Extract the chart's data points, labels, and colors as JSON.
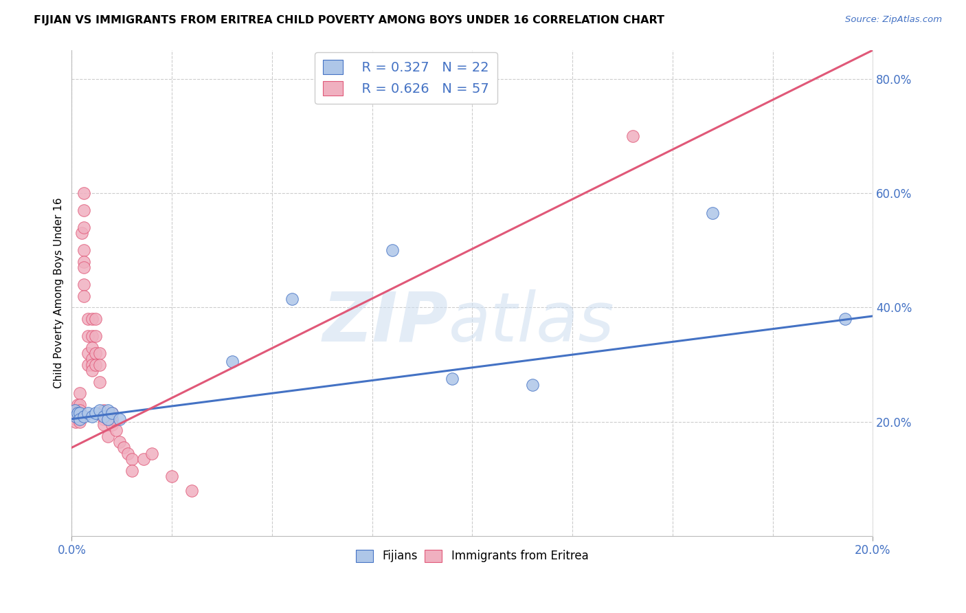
{
  "title": "FIJIAN VS IMMIGRANTS FROM ERITREA CHILD POVERTY AMONG BOYS UNDER 16 CORRELATION CHART",
  "source": "Source: ZipAtlas.com",
  "ylabel": "Child Poverty Among Boys Under 16",
  "xlim": [
    0.0,
    0.2
  ],
  "ylim": [
    0.0,
    0.85
  ],
  "yticks": [
    0.0,
    0.2,
    0.4,
    0.6,
    0.8
  ],
  "ytick_labels": [
    "",
    "20.0%",
    "40.0%",
    "60.0%",
    "80.0%"
  ],
  "xtick_vals": [
    0.0,
    0.2
  ],
  "xtick_labels": [
    "0.0%",
    "20.0%"
  ],
  "fijian_R": 0.327,
  "fijian_N": 22,
  "eritrea_R": 0.626,
  "eritrea_N": 57,
  "fijian_scatter_color": "#aec6e8",
  "eritrea_scatter_color": "#f0b0c0",
  "fijian_line_color": "#4472c4",
  "eritrea_line_color": "#e05878",
  "fijian_line_x0": 0.0,
  "fijian_line_y0": 0.205,
  "fijian_line_x1": 0.2,
  "fijian_line_y1": 0.385,
  "eritrea_line_x0": 0.0,
  "eritrea_line_y0": 0.155,
  "eritrea_line_x1": 0.2,
  "eritrea_line_y1": 0.85,
  "fijian_x": [
    0.0008,
    0.001,
    0.0015,
    0.002,
    0.002,
    0.003,
    0.004,
    0.005,
    0.006,
    0.007,
    0.008,
    0.009,
    0.009,
    0.01,
    0.012,
    0.04,
    0.055,
    0.08,
    0.095,
    0.115,
    0.16,
    0.193
  ],
  "fijian_y": [
    0.22,
    0.21,
    0.215,
    0.215,
    0.205,
    0.21,
    0.215,
    0.21,
    0.215,
    0.22,
    0.21,
    0.22,
    0.205,
    0.215,
    0.205,
    0.305,
    0.415,
    0.5,
    0.275,
    0.265,
    0.565,
    0.38
  ],
  "eritrea_x": [
    0.001,
    0.001,
    0.001,
    0.001,
    0.001,
    0.0015,
    0.0015,
    0.002,
    0.002,
    0.002,
    0.002,
    0.002,
    0.0025,
    0.003,
    0.003,
    0.003,
    0.003,
    0.003,
    0.003,
    0.003,
    0.003,
    0.004,
    0.004,
    0.004,
    0.004,
    0.005,
    0.005,
    0.005,
    0.005,
    0.005,
    0.005,
    0.006,
    0.006,
    0.006,
    0.006,
    0.007,
    0.007,
    0.007,
    0.008,
    0.008,
    0.008,
    0.009,
    0.009,
    0.01,
    0.01,
    0.01,
    0.011,
    0.012,
    0.013,
    0.014,
    0.015,
    0.015,
    0.018,
    0.02,
    0.025,
    0.03,
    0.14
  ],
  "eritrea_y": [
    0.22,
    0.215,
    0.21,
    0.205,
    0.2,
    0.23,
    0.215,
    0.25,
    0.23,
    0.22,
    0.21,
    0.2,
    0.53,
    0.6,
    0.57,
    0.54,
    0.5,
    0.48,
    0.47,
    0.44,
    0.42,
    0.38,
    0.35,
    0.32,
    0.3,
    0.38,
    0.35,
    0.33,
    0.31,
    0.3,
    0.29,
    0.38,
    0.35,
    0.32,
    0.3,
    0.32,
    0.3,
    0.27,
    0.22,
    0.205,
    0.195,
    0.205,
    0.175,
    0.215,
    0.205,
    0.195,
    0.185,
    0.165,
    0.155,
    0.145,
    0.135,
    0.115,
    0.135,
    0.145,
    0.105,
    0.08,
    0.7
  ]
}
